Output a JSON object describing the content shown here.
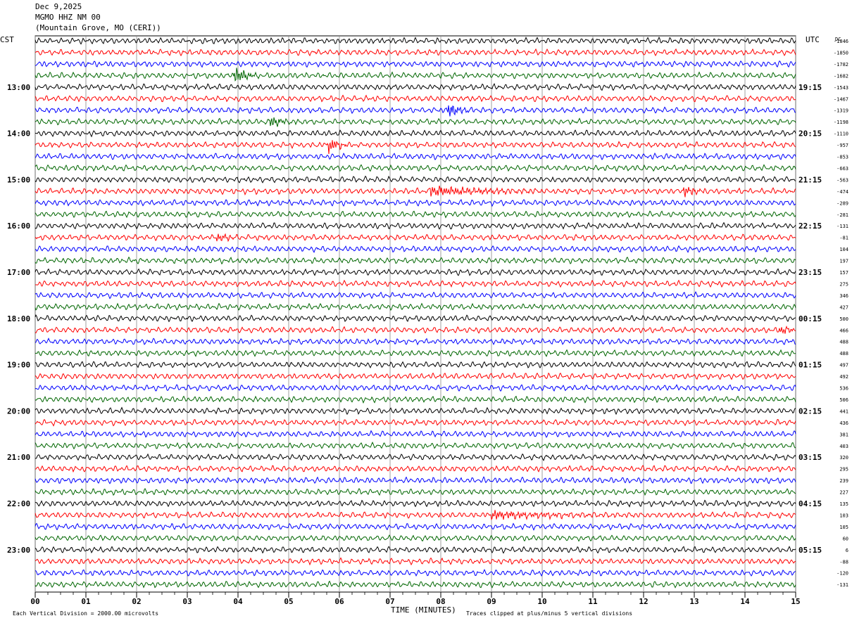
{
  "header": {
    "date": "Dec 9,2025",
    "station": "MGMO HHZ NM 00",
    "location": "(Mountain Grove, MO (CERI))"
  },
  "axes": {
    "left_label": "CST",
    "right_label": "UTC",
    "dc_label": "DC",
    "x_title": "TIME (MINUTES)"
  },
  "footer": {
    "scale_note": "Each Vertical Division = 2000.00 microvolts",
    "clip_note": "Traces clipped at plus/minus 5 vertical divisions"
  },
  "colors": {
    "trace_cycle": [
      "#000000",
      "#ff0000",
      "#0000ff",
      "#006600"
    ],
    "grid": "#888888"
  },
  "chart_data": {
    "type": "line",
    "title": "",
    "xlabel": "TIME (MINUTES)",
    "ylabel": "",
    "x_ticks": [
      "00",
      "01",
      "02",
      "03",
      "04",
      "05",
      "06",
      "07",
      "08",
      "09",
      "10",
      "11",
      "12",
      "13",
      "14",
      "15"
    ],
    "xlim": [
      0,
      15
    ],
    "grid": true,
    "left_hour_labels": [
      {
        "row": 4,
        "text": "13:00"
      },
      {
        "row": 8,
        "text": "14:00"
      },
      {
        "row": 12,
        "text": "15:00"
      },
      {
        "row": 16,
        "text": "16:00"
      },
      {
        "row": 20,
        "text": "17:00"
      },
      {
        "row": 24,
        "text": "18:00"
      },
      {
        "row": 28,
        "text": "19:00"
      },
      {
        "row": 32,
        "text": "20:00"
      },
      {
        "row": 36,
        "text": "21:00"
      },
      {
        "row": 40,
        "text": "22:00"
      },
      {
        "row": 44,
        "text": "23:00"
      }
    ],
    "right_hour_labels": [
      {
        "row": 4,
        "text": "19:15"
      },
      {
        "row": 8,
        "text": "20:15"
      },
      {
        "row": 12,
        "text": "21:15"
      },
      {
        "row": 16,
        "text": "22:15"
      },
      {
        "row": 20,
        "text": "23:15"
      },
      {
        "row": 24,
        "text": "00:15"
      },
      {
        "row": 28,
        "text": "01:15"
      },
      {
        "row": 32,
        "text": "02:15"
      },
      {
        "row": 36,
        "text": "03:15"
      },
      {
        "row": 40,
        "text": "04:15"
      },
      {
        "row": 44,
        "text": "05:15"
      }
    ],
    "dc_offsets": [
      "-1846",
      "-1850",
      "-1782",
      "-1682",
      "-1543",
      "-1467",
      "-1319",
      "-1198",
      "-1110",
      "-957",
      "-853",
      "-663",
      "-563",
      "-474",
      "-289",
      "-281",
      "-131",
      "-81",
      "104",
      "197",
      "157",
      "275",
      "346",
      "427",
      "500",
      "466",
      "488",
      "488",
      "497",
      "492",
      "536",
      "506",
      "441",
      "436",
      "381",
      "403",
      "320",
      "295",
      "239",
      "227",
      "135",
      "103",
      "105",
      "60",
      "6",
      "-88",
      "-120",
      "-131"
    ],
    "events": [
      {
        "row": 3,
        "minute": 3.95,
        "amplitude": 2.6,
        "duration_min": 0.45
      },
      {
        "row": 6,
        "minute": 8.15,
        "amplitude": 1.6,
        "duration_min": 0.55
      },
      {
        "row": 7,
        "minute": 4.65,
        "amplitude": 1.4,
        "duration_min": 0.5
      },
      {
        "row": 9,
        "minute": 5.8,
        "amplitude": 2.6,
        "duration_min": 0.35
      },
      {
        "row": 13,
        "minute": 7.8,
        "amplitude": 1.3,
        "duration_min": 2.6
      },
      {
        "row": 13,
        "minute": 12.8,
        "amplitude": 1.4,
        "duration_min": 0.5
      },
      {
        "row": 17,
        "minute": 3.6,
        "amplitude": 1.0,
        "duration_min": 0.6
      },
      {
        "row": 25,
        "minute": 14.7,
        "amplitude": 1.0,
        "duration_min": 0.6
      },
      {
        "row": 41,
        "minute": 9.0,
        "amplitude": 1.0,
        "duration_min": 3.0
      }
    ]
  }
}
